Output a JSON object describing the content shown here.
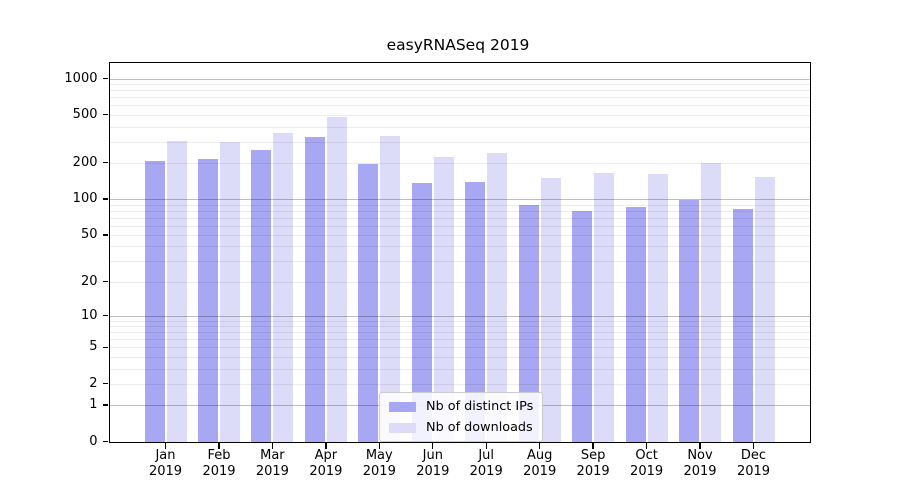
{
  "title": "easyRNASeq 2019",
  "chart_data": {
    "type": "bar",
    "title": "easyRNASeq 2019",
    "categories": [
      "Jan 2019",
      "Feb 2019",
      "Mar 2019",
      "Apr 2019",
      "May 2019",
      "Jun 2019",
      "Jul 2019",
      "Aug 2019",
      "Sep 2019",
      "Oct 2019",
      "Nov 2019",
      "Dec 2019"
    ],
    "series": [
      {
        "name": "Nb of distinct IPs",
        "color": "#a7a7f4",
        "values": [
          209,
          214,
          254,
          330,
          197,
          135,
          139,
          89,
          79,
          85,
          98,
          82
        ]
      },
      {
        "name": "Nb of downloads",
        "color": "#dcdcf9",
        "values": [
          303,
          297,
          356,
          478,
          335,
          224,
          242,
          151,
          165,
          163,
          200,
          152
        ]
      }
    ],
    "yscale": "log1p",
    "ylim": [
      0,
      1355
    ],
    "yticks": [
      0,
      1,
      2,
      5,
      10,
      20,
      50,
      100,
      200,
      500,
      1000
    ],
    "grid_minor_values": [
      2,
      3,
      4,
      5,
      6,
      7,
      8,
      9,
      20,
      30,
      40,
      50,
      60,
      70,
      80,
      90,
      200,
      300,
      400,
      500,
      600,
      700,
      800,
      900
    ],
    "grid_major_values": [
      1,
      10,
      100,
      1000
    ],
    "grid": true,
    "legend_position": "lower center",
    "colors": {
      "minor_grid": "rgba(0,0,0,0.075)",
      "major_grid": "rgba(0,0,0,0.25)",
      "spine": "#000000",
      "background": "#ffffff"
    }
  }
}
